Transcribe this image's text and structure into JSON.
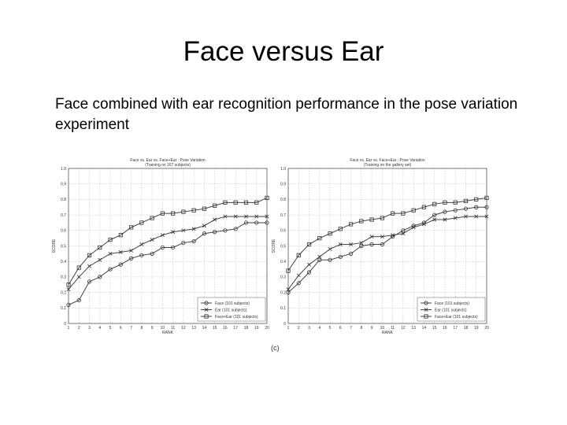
{
  "slide": {
    "title": "Face versus Ear",
    "subtitle": "Face combined with ear recognition performance in the pose variation experiment",
    "caption": "(c)"
  },
  "chart_data": [
    {
      "type": "line",
      "title": "Face vs. Ear vs. Face+Ear : Pose Variation",
      "subtitle": "(Training on 167 subjects)",
      "xlabel": "RANK",
      "ylabel": "SCORE",
      "x": [
        1,
        2,
        3,
        4,
        5,
        6,
        7,
        8,
        9,
        10,
        11,
        12,
        13,
        14,
        15,
        16,
        17,
        18,
        19,
        20
      ],
      "xticks": [
        "1",
        "2",
        "3",
        "4",
        "5",
        "6",
        "7",
        "8",
        "9",
        "10",
        "11",
        "12",
        "13",
        "14",
        "15",
        "16",
        "17",
        "18",
        "19",
        "20"
      ],
      "ylim": [
        0,
        1
      ],
      "yticks": [
        "0",
        "0.1",
        "0.2",
        "0.3",
        "0.4",
        "0.5",
        "0.6",
        "0.7",
        "0.8",
        "0.9",
        "1.0"
      ],
      "grid": true,
      "legend": "bottom-right",
      "series": [
        {
          "name": "Face (101 subjects)",
          "marker": "circle",
          "values": [
            0.12,
            0.15,
            0.27,
            0.3,
            0.35,
            0.38,
            0.42,
            0.44,
            0.45,
            0.49,
            0.49,
            0.52,
            0.53,
            0.58,
            0.59,
            0.6,
            0.61,
            0.65,
            0.65,
            0.65
          ]
        },
        {
          "name": "Ear (101 subjects)",
          "marker": "x",
          "values": [
            0.22,
            0.3,
            0.37,
            0.41,
            0.45,
            0.46,
            0.47,
            0.51,
            0.54,
            0.57,
            0.59,
            0.6,
            0.61,
            0.63,
            0.67,
            0.69,
            0.69,
            0.69,
            0.69,
            0.69
          ]
        },
        {
          "name": "Face+Ear (101 subjects)",
          "marker": "square",
          "values": [
            0.25,
            0.36,
            0.44,
            0.49,
            0.54,
            0.57,
            0.62,
            0.65,
            0.68,
            0.71,
            0.71,
            0.72,
            0.73,
            0.74,
            0.76,
            0.78,
            0.78,
            0.78,
            0.78,
            0.81
          ]
        }
      ]
    },
    {
      "type": "line",
      "title": "Face vs. Ear vs. Face+Ear : Pose Variation",
      "subtitle": "(Training on the gallery set)",
      "xlabel": "RANK",
      "ylabel": "SCORE",
      "x": [
        1,
        2,
        3,
        4,
        5,
        6,
        7,
        8,
        9,
        10,
        11,
        12,
        13,
        14,
        15,
        16,
        17,
        18,
        19,
        20
      ],
      "xticks": [
        "1",
        "2",
        "3",
        "4",
        "5",
        "6",
        "7",
        "8",
        "9",
        "10",
        "11",
        "12",
        "13",
        "14",
        "15",
        "16",
        "17",
        "18",
        "19",
        "20"
      ],
      "ylim": [
        0,
        1
      ],
      "yticks": [
        "0",
        "0.1",
        "0.2",
        "0.3",
        "0.4",
        "0.5",
        "0.6",
        "0.7",
        "0.8",
        "0.9",
        "1.0"
      ],
      "grid": true,
      "legend": "bottom-right",
      "series": [
        {
          "name": "Face (101 subjects)",
          "marker": "circle",
          "values": [
            0.2,
            0.26,
            0.33,
            0.41,
            0.41,
            0.43,
            0.45,
            0.5,
            0.51,
            0.51,
            0.56,
            0.6,
            0.63,
            0.65,
            0.7,
            0.72,
            0.73,
            0.74,
            0.75,
            0.75
          ]
        },
        {
          "name": "Ear (101 subjects)",
          "marker": "x",
          "values": [
            0.22,
            0.31,
            0.38,
            0.43,
            0.48,
            0.51,
            0.51,
            0.52,
            0.56,
            0.56,
            0.57,
            0.58,
            0.62,
            0.64,
            0.67,
            0.67,
            0.68,
            0.69,
            0.69,
            0.69
          ]
        },
        {
          "name": "Face+Ear (101 subjects)",
          "marker": "square",
          "values": [
            0.34,
            0.44,
            0.51,
            0.55,
            0.58,
            0.61,
            0.64,
            0.66,
            0.67,
            0.68,
            0.71,
            0.71,
            0.73,
            0.75,
            0.77,
            0.78,
            0.78,
            0.79,
            0.8,
            0.81
          ]
        }
      ]
    }
  ]
}
